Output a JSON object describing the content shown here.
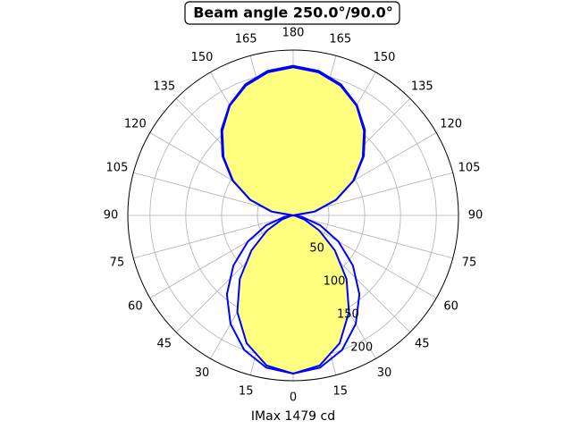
{
  "chart_data": {
    "type": "polar",
    "title": "Beam angle 250.0°/90.0°",
    "xlabel": "IMax 1479 cd",
    "theta": [
      0,
      10,
      20,
      30,
      40,
      50,
      60,
      70,
      80,
      90,
      100,
      110,
      120,
      130,
      140,
      150,
      160,
      170,
      180,
      190,
      200,
      210,
      220,
      230,
      240,
      250,
      260,
      270,
      280,
      290,
      300,
      310,
      320,
      330,
      340,
      350,
      360
    ],
    "series": [
      {
        "color": "#0000ff",
        "fill": "#ffff80",
        "values": [
          221,
          213,
          190,
          156,
          116,
          76,
          42,
          17,
          3,
          0,
          30,
          64,
          97,
          127,
          154,
          177,
          193,
          203,
          207,
          203,
          193,
          177,
          154,
          127,
          97,
          64,
          30,
          0,
          3,
          17,
          42,
          76,
          116,
          156,
          190,
          213,
          221
        ]
      },
      {
        "color": "#0000ff",
        "values": [
          221,
          216,
          200,
          175,
          144,
          109,
          73,
          40,
          13,
          0,
          31,
          64,
          98,
          129,
          156,
          178,
          195,
          205,
          209,
          205,
          195,
          178,
          156,
          129,
          98,
          64,
          31,
          0,
          13,
          40,
          73,
          109,
          144,
          175,
          200,
          216,
          221
        ]
      }
    ],
    "rlim": [
      0,
      231
    ],
    "rticks": [
      50,
      100,
      150,
      200
    ],
    "rlabel_angle": 22.5,
    "thetaticks": [
      0,
      15,
      30,
      45,
      60,
      75,
      90,
      105,
      120,
      135,
      150,
      165,
      180,
      {
        "value": 195,
        "label": "165"
      },
      {
        "value": 210,
        "label": "150"
      },
      {
        "value": 225,
        "label": "135"
      },
      {
        "value": 240,
        "label": "120"
      },
      {
        "value": 255,
        "label": "105"
      },
      {
        "value": 270,
        "label": "90"
      },
      {
        "value": 285,
        "label": "75"
      },
      {
        "value": 300,
        "label": "60"
      },
      {
        "value": 315,
        "label": "45"
      },
      {
        "value": 330,
        "label": "30"
      },
      {
        "value": 345,
        "label": "15"
      }
    ],
    "grid": true
  }
}
